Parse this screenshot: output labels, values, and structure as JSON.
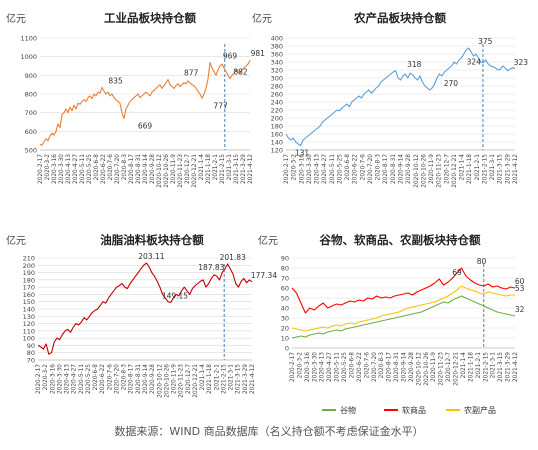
{
  "footer": "数据来源：WIND 商品数据库（名义持仓额不考虑保证金水平）",
  "x_ticks": [
    "2020-2-17",
    "2020-3-2",
    "2020-3-16",
    "2020-3-30",
    "2020-4-13",
    "2020-4-27",
    "2020-5-11",
    "2020-5-25",
    "2020-6-8",
    "2020-6-22",
    "2020-7-6",
    "2020-7-20",
    "2020-8-3",
    "2020-8-17",
    "2020-8-31",
    "2020-9-14",
    "2020-9-28",
    "2020-10-12",
    "2020-10-26",
    "2020-11-9",
    "2020-11-23",
    "2020-12-7",
    "2020-12-21",
    "2021-1-4",
    "2021-1-18",
    "2021-2-1",
    "2021-2-15",
    "2021-3-1",
    "2021-3-15",
    "2021-3-29",
    "2021-4-12"
  ],
  "chart_data": [
    {
      "id": "industrial",
      "type": "line",
      "title": "工业品板块持仓额",
      "unit": "亿元",
      "ylim": [
        500,
        1100
      ],
      "yticks": [
        500,
        600,
        700,
        800,
        900,
        1000,
        1100
      ],
      "color": "#ed7d31",
      "vline_at": 0.88,
      "annotations": [
        {
          "text": "835",
          "t": 0.36,
          "value": 835
        },
        {
          "text": "669",
          "t": 0.5,
          "value": 669
        },
        {
          "text": "877",
          "t": 0.72,
          "value": 877
        },
        {
          "text": "777",
          "t": 0.86,
          "value": 777
        },
        {
          "text": "969",
          "t": 0.905,
          "value": 969
        },
        {
          "text": "882",
          "t": 0.955,
          "value": 882
        },
        {
          "text": "981",
          "t": 0.998,
          "value": 981
        }
      ],
      "series": [
        {
          "values": [
            530,
            525,
            545,
            560,
            550,
            575,
            590,
            580,
            600,
            640,
            620,
            690,
            700,
            720,
            700,
            730,
            710,
            740,
            720,
            750,
            745,
            760,
            770,
            760,
            780,
            790,
            775,
            800,
            790,
            810,
            805,
            835,
            815,
            800,
            810,
            790,
            800,
            780,
            770,
            760,
            750,
            700,
            669,
            720,
            740,
            760,
            770,
            780,
            790,
            800,
            780,
            790,
            800,
            810,
            800,
            790,
            810,
            820,
            830,
            840,
            850,
            830,
            845,
            860,
            877,
            850,
            840,
            830,
            845,
            855,
            840,
            850,
            860,
            855,
            870,
            860,
            850,
            845,
            830,
            815,
            800,
            777,
            800,
            830,
            880,
            969,
            940,
            920,
            900,
            930,
            950,
            960,
            940,
            920,
            900,
            882,
            900,
            910,
            930,
            920,
            910,
            930,
            940,
            950,
            960,
            981
          ]
        }
      ]
    },
    {
      "id": "agri",
      "type": "line",
      "title": "农产品板块持仓额",
      "unit": "亿元",
      "ylim": [
        120,
        400
      ],
      "yticks": [
        120,
        140,
        160,
        180,
        200,
        220,
        240,
        260,
        280,
        300,
        320,
        340,
        360,
        380,
        400
      ],
      "color": "#5b9bd5",
      "vline_at": 0.86,
      "annotations": [
        {
          "text": "131",
          "t": 0.07,
          "value": 131
        },
        {
          "text": "318",
          "t": 0.56,
          "value": 318
        },
        {
          "text": "270",
          "t": 0.72,
          "value": 270
        },
        {
          "text": "375",
          "t": 0.87,
          "value": 375
        },
        {
          "text": "324",
          "t": 0.82,
          "value": 324
        },
        {
          "text": "323",
          "t": 0.99,
          "value": 323
        }
      ],
      "series": [
        {
          "values": [
            160,
            150,
            145,
            150,
            140,
            135,
            131,
            145,
            150,
            155,
            160,
            165,
            170,
            175,
            180,
            190,
            195,
            200,
            205,
            210,
            215,
            220,
            218,
            225,
            230,
            235,
            228,
            240,
            245,
            250,
            255,
            250,
            260,
            265,
            270,
            262,
            268,
            275,
            280,
            290,
            295,
            300,
            305,
            310,
            315,
            318,
            300,
            295,
            305,
            310,
            300,
            312,
            308,
            300,
            295,
            305,
            290,
            280,
            275,
            270,
            275,
            285,
            300,
            310,
            305,
            315,
            320,
            325,
            330,
            340,
            335,
            345,
            350,
            360,
            370,
            375,
            365,
            355,
            360,
            350,
            340,
            338,
            345,
            335,
            330,
            328,
            325,
            320,
            322,
            330,
            325,
            318,
            322,
            326,
            323
          ]
        }
      ]
    },
    {
      "id": "oils",
      "type": "line",
      "title": "油脂油料板块持仓额",
      "unit": "亿元",
      "ylim": [
        70,
        210
      ],
      "yticks": [
        70,
        80,
        90,
        100,
        110,
        120,
        130,
        140,
        150,
        160,
        170,
        180,
        190,
        200,
        210
      ],
      "color": "#c00000",
      "vline_at": 0.87,
      "annotations": [
        {
          "text": "203.11",
          "t": 0.53,
          "value": 203.11
        },
        {
          "text": "149.15",
          "t": 0.64,
          "value": 149.15
        },
        {
          "text": "187.83",
          "t": 0.81,
          "value": 187.83
        },
        {
          "text": "201.83",
          "t": 0.91,
          "value": 201.83
        },
        {
          "text": "177.34",
          "t": 0.99,
          "value": 177.34
        }
      ],
      "series": [
        {
          "values": [
            90,
            88,
            85,
            92,
            78,
            80,
            95,
            100,
            98,
            105,
            110,
            112,
            108,
            115,
            120,
            118,
            122,
            128,
            125,
            130,
            135,
            138,
            140,
            145,
            150,
            148,
            155,
            160,
            165,
            170,
            172,
            175,
            170,
            168,
            175,
            180,
            185,
            190,
            195,
            200,
            203,
            198,
            190,
            185,
            178,
            170,
            160,
            155,
            150,
            149,
            155,
            160,
            158,
            165,
            170,
            165,
            160,
            168,
            172,
            175,
            178,
            180,
            170,
            175,
            182,
            187,
            185,
            180,
            190,
            195,
            201.83,
            195,
            188,
            175,
            170,
            178,
            182,
            176,
            180,
            177.34
          ]
        }
      ]
    },
    {
      "id": "grains",
      "type": "line",
      "title": "谷物、软商品、农副板块持仓额",
      "unit": "亿元",
      "ylim": [
        0,
        90
      ],
      "yticks": [
        0,
        10,
        20,
        30,
        40,
        50,
        60,
        70,
        80,
        90
      ],
      "vline_at": 0.86,
      "legend": [
        "谷物",
        "软商品",
        "农副产品"
      ],
      "annotations": [
        {
          "text": "69",
          "t": 0.74,
          "value": 69
        },
        {
          "text": "80",
          "t": 0.85,
          "value": 80
        },
        {
          "text": "60",
          "t": 0.995,
          "value": 60
        },
        {
          "text": "53",
          "t": 0.995,
          "value": 53
        },
        {
          "text": "32",
          "t": 0.995,
          "value": 32
        }
      ],
      "series": [
        {
          "name": "谷物",
          "color": "#70ad47",
          "values": [
            10,
            11,
            12,
            11,
            13,
            14,
            15,
            14,
            16,
            17,
            18,
            17,
            19,
            20,
            21,
            22,
            23,
            24,
            25,
            26,
            27,
            28,
            29,
            30,
            31,
            32,
            33,
            34,
            35,
            36,
            38,
            40,
            42,
            44,
            46,
            45,
            48,
            50,
            52,
            50,
            48,
            46,
            44,
            42,
            40,
            38,
            36,
            35,
            34,
            33,
            32
          ]
        },
        {
          "name": "软商品",
          "color": "#ff0000",
          "values": [
            60,
            55,
            45,
            35,
            40,
            38,
            42,
            45,
            40,
            42,
            44,
            43,
            45,
            47,
            46,
            48,
            47,
            50,
            49,
            52,
            50,
            51,
            50,
            52,
            53,
            54,
            55,
            53,
            56,
            58,
            60,
            62,
            65,
            69,
            63,
            66,
            70,
            75,
            80,
            72,
            68,
            65,
            63,
            62,
            64,
            61,
            62,
            60,
            59,
            61,
            60
          ]
        },
        {
          "name": "农副产品",
          "color": "#ffc000",
          "values": [
            20,
            19,
            18,
            17,
            18,
            19,
            20,
            21,
            20,
            22,
            23,
            22,
            24,
            25,
            24,
            26,
            27,
            28,
            29,
            30,
            32,
            33,
            34,
            35,
            36,
            38,
            40,
            41,
            42,
            43,
            44,
            45,
            46,
            48,
            50,
            52,
            55,
            58,
            62,
            60,
            58,
            57,
            55,
            54,
            56,
            55,
            54,
            53,
            52,
            53,
            53
          ]
        }
      ]
    }
  ]
}
